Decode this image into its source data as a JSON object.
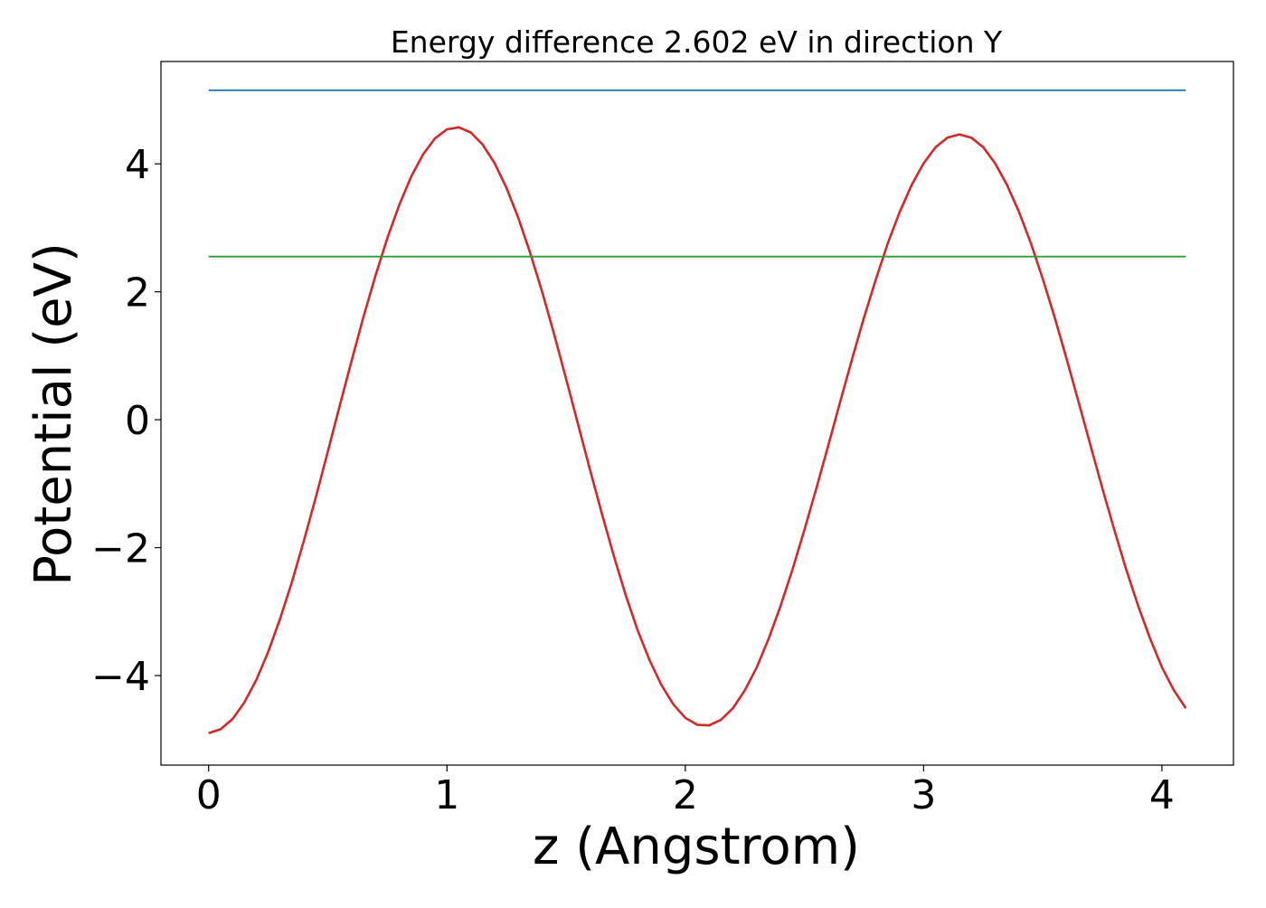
{
  "chart_data": {
    "type": "line",
    "title": "Energy difference 2.602 eV in direction Y",
    "xlabel": "z (Angstrom)",
    "ylabel": "Potential (eV)",
    "xlim": [
      -0.2,
      4.3
    ],
    "ylim": [
      -5.4,
      5.6
    ],
    "x_ticks": [
      0,
      1,
      2,
      3,
      4
    ],
    "x_tick_labels": [
      "0",
      "1",
      "2",
      "3",
      "4"
    ],
    "y_ticks": [
      -4,
      -2,
      0,
      2,
      4
    ],
    "y_tick_labels": [
      "−4",
      "−2",
      "0",
      "2",
      "4"
    ],
    "grid": false,
    "series": [
      {
        "color": "#d62728",
        "x": [
          0.0,
          0.05,
          0.1,
          0.15,
          0.2,
          0.25,
          0.3,
          0.35,
          0.4,
          0.45,
          0.5,
          0.55,
          0.6,
          0.65,
          0.7,
          0.75,
          0.8,
          0.85,
          0.9,
          0.95,
          1.0,
          1.05,
          1.1,
          1.15,
          1.2,
          1.25,
          1.3,
          1.35,
          1.4,
          1.45,
          1.5,
          1.55,
          1.6,
          1.65,
          1.7,
          1.75,
          1.8,
          1.85,
          1.9,
          1.95,
          2.0,
          2.05,
          2.1,
          2.15,
          2.2,
          2.25,
          2.3,
          2.35,
          2.4,
          2.45,
          2.5,
          2.55,
          2.6,
          2.65,
          2.7,
          2.75,
          2.8,
          2.85,
          2.9,
          2.95,
          3.0,
          3.05,
          3.1,
          3.15,
          3.2,
          3.25,
          3.3,
          3.35,
          3.4,
          3.45,
          3.5,
          3.55,
          3.6,
          3.65,
          3.7,
          3.75,
          3.8,
          3.85,
          3.9,
          3.95,
          4.0,
          4.05,
          4.1
        ],
        "y": [
          -4.9,
          -4.84,
          -4.68,
          -4.42,
          -4.07,
          -3.63,
          -3.11,
          -2.53,
          -1.89,
          -1.21,
          -0.5,
          0.22,
          0.92,
          1.61,
          2.25,
          2.84,
          3.36,
          3.8,
          4.15,
          4.4,
          4.54,
          4.57,
          4.49,
          4.3,
          4.01,
          3.62,
          3.15,
          2.6,
          1.99,
          1.33,
          0.64,
          -0.07,
          -0.78,
          -1.47,
          -2.13,
          -2.74,
          -3.29,
          -3.76,
          -4.15,
          -4.45,
          -4.66,
          -4.77,
          -4.78,
          -4.69,
          -4.51,
          -4.23,
          -3.87,
          -3.42,
          -2.91,
          -2.34,
          -1.72,
          -1.07,
          -0.4,
          0.28,
          0.95,
          1.6,
          2.2,
          2.76,
          3.25,
          3.67,
          4.01,
          4.26,
          4.41,
          4.46,
          4.41,
          4.26,
          4.01,
          3.67,
          3.25,
          2.76,
          2.2,
          1.6,
          0.95,
          0.28,
          -0.4,
          -1.07,
          -1.72,
          -2.34,
          -2.91,
          -3.42,
          -3.87,
          -4.23,
          -4.51
        ]
      },
      {
        "color": "#1f77b4",
        "x": [
          0.0,
          4.1
        ],
        "y": [
          5.15,
          5.15
        ]
      },
      {
        "color": "#2ca02c",
        "x": [
          0.0,
          4.1
        ],
        "y": [
          2.55,
          2.55
        ]
      }
    ]
  }
}
